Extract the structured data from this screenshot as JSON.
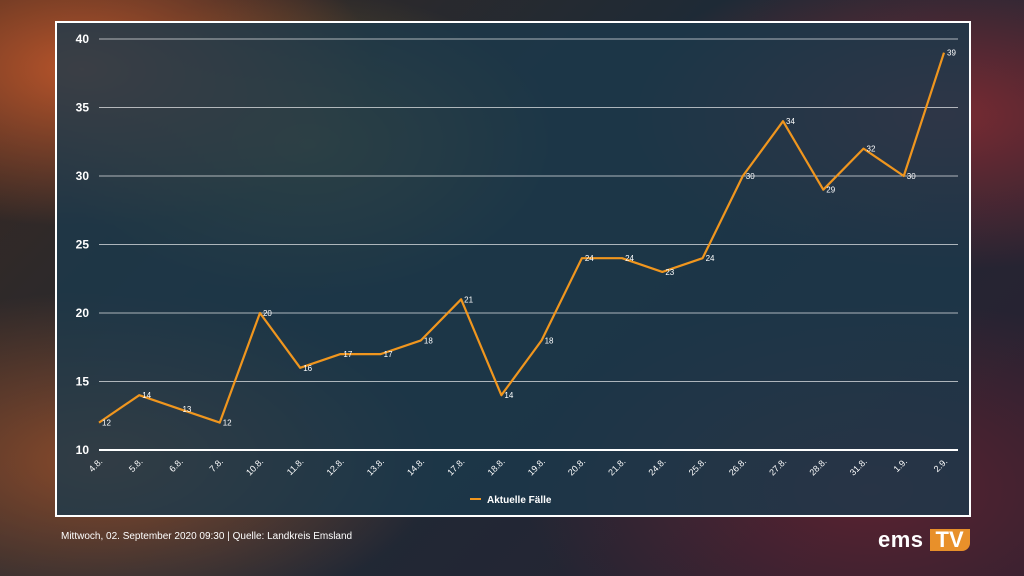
{
  "chart_data": {
    "type": "line",
    "x": [
      "4.8.",
      "5.8.",
      "6.8.",
      "7.8.",
      "10.8.",
      "11.8.",
      "12.8.",
      "13.8.",
      "14.8.",
      "17.8.",
      "18.8.",
      "19.8.",
      "20.8.",
      "21.8.",
      "24.8.",
      "25.8.",
      "26.8.",
      "27.8.",
      "28.8.",
      "31.8.",
      "1.9.",
      "2.9."
    ],
    "series": [
      {
        "name": "Aktuelle Fälle",
        "values": [
          12,
          14,
          13,
          12,
          20,
          16,
          17,
          17,
          18,
          21,
          14,
          18,
          24,
          24,
          23,
          24,
          30,
          34,
          29,
          32,
          30,
          39
        ]
      }
    ],
    "ylim": [
      10,
      40
    ],
    "yticks": [
      10,
      15,
      20,
      25,
      30,
      35,
      40
    ],
    "grid": true,
    "legend": "bottom-center",
    "line_color": "#f0961e"
  },
  "footer": {
    "date": "Mittwoch, 02. September 2020 09:30",
    "separator": "|",
    "source": "Quelle:  Landkreis Emsland"
  },
  "logo": {
    "part1": "ems",
    "part2": "TV"
  }
}
